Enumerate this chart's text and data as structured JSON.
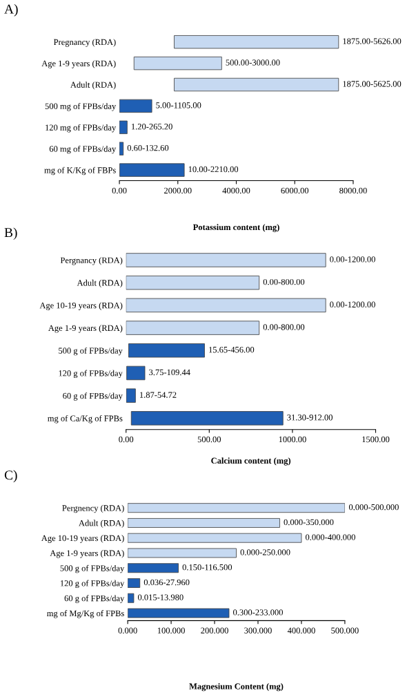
{
  "chart_data": [
    {
      "type": "bar",
      "orientation": "horizontal",
      "title": "A)",
      "xlabel": "Potassium content (mg)",
      "categories": [
        "Pregnancy (RDA)",
        "Age 1-9 years (RDA)",
        "Adult (RDA)",
        "500 mg of FPBs/day",
        "120 mg of FPBs/day",
        "60 mg of FPBs/day",
        "mg of K/Kg of FBPs"
      ],
      "base": [
        1875,
        500,
        1875,
        5,
        1.2,
        0.6,
        10
      ],
      "values": [
        5626,
        3000,
        5625,
        1105,
        265.2,
        132.6,
        2210
      ],
      "value_labels": [
        "1875.00-5626.00",
        "500.00-3000.00",
        "1875.00-5625.00",
        "5.00-1105.00",
        "1.20-265.20",
        "0.60-132.60",
        "10.00-2210.00"
      ],
      "colors": [
        "#c6d9f1",
        "#c6d9f1",
        "#c6d9f1",
        "#1f5fb4",
        "#1f5fb4",
        "#1f5fb4",
        "#1f5fb4"
      ],
      "xlim": [
        0,
        8000
      ],
      "xticks": [
        {
          "value": 0,
          "label": "0.00"
        },
        {
          "value": 2000,
          "label": "2000.00"
        },
        {
          "value": 4000,
          "label": "4000.00"
        },
        {
          "value": 6000,
          "label": "6000.00"
        },
        {
          "value": 8000,
          "label": "8000.00"
        }
      ]
    },
    {
      "type": "bar",
      "orientation": "horizontal",
      "title": "B)",
      "xlabel": "Calcium content (mg)",
      "categories": [
        "Pergnancy (RDA)",
        "Adult (RDA)",
        "Age 10-19 years (RDA)",
        "Age 1-9 years (RDA)",
        "500 g of FPBs/day",
        "120 g of FPBs/day",
        "60 g of FPBs/day",
        "mg of Ca/Kg of FPBs"
      ],
      "base": [
        0,
        0,
        0,
        0,
        15.65,
        3.75,
        1.87,
        31.3
      ],
      "values": [
        1200,
        800,
        1200,
        800,
        456,
        109.44,
        54.72,
        912
      ],
      "value_labels": [
        "0.00-1200.00",
        "0.00-800.00",
        "0.00-1200.00",
        "0.00-800.00",
        "15.65-456.00",
        "3.75-109.44",
        "1.87-54.72",
        "31.30-912.00"
      ],
      "colors": [
        "#c6d9f1",
        "#c6d9f1",
        "#c6d9f1",
        "#c6d9f1",
        "#1f5fb4",
        "#1f5fb4",
        "#1f5fb4",
        "#1f5fb4"
      ],
      "xlim": [
        0,
        1500
      ],
      "xticks": [
        {
          "value": 0,
          "label": "0.00"
        },
        {
          "value": 500,
          "label": "500.00"
        },
        {
          "value": 1000,
          "label": "1000.00"
        },
        {
          "value": 1500,
          "label": "1500.00"
        }
      ]
    },
    {
      "type": "bar",
      "orientation": "horizontal",
      "title": "C)",
      "xlabel": "Magnesium Content (mg)",
      "categories": [
        "Pergnency (RDA)",
        "Adult (RDA)",
        "Age 10-19 years (RDA)",
        "Age 1-9 years (RDA)",
        "500 g of FPBs/day",
        "120 g of FPBs/day",
        "60 g of FPBs/day",
        "mg of Mg/Kg of FPBs"
      ],
      "base": [
        0,
        0,
        0,
        0,
        0.15,
        0.036,
        0.015,
        0.3
      ],
      "values": [
        500,
        350,
        400,
        250,
        116.5,
        27.96,
        13.98,
        233
      ],
      "value_labels": [
        "0.000-500.000",
        "0.000-350.000",
        "0.000-400.000",
        "0.000-250.000",
        "0.150-116.500",
        "0.036-27.960",
        "0.015-13.980",
        "0.300-233.000"
      ],
      "colors": [
        "#c6d9f1",
        "#c6d9f1",
        "#c6d9f1",
        "#c6d9f1",
        "#1f5fb4",
        "#1f5fb4",
        "#1f5fb4",
        "#1f5fb4"
      ],
      "xlim": [
        0,
        500
      ],
      "xticks": [
        {
          "value": 0,
          "label": "0.000"
        },
        {
          "value": 100,
          "label": "100.000"
        },
        {
          "value": 200,
          "label": "200.000"
        },
        {
          "value": 300,
          "label": "300.000"
        },
        {
          "value": 400,
          "label": "400.000"
        },
        {
          "value": 500,
          "label": "500.000"
        }
      ]
    }
  ]
}
